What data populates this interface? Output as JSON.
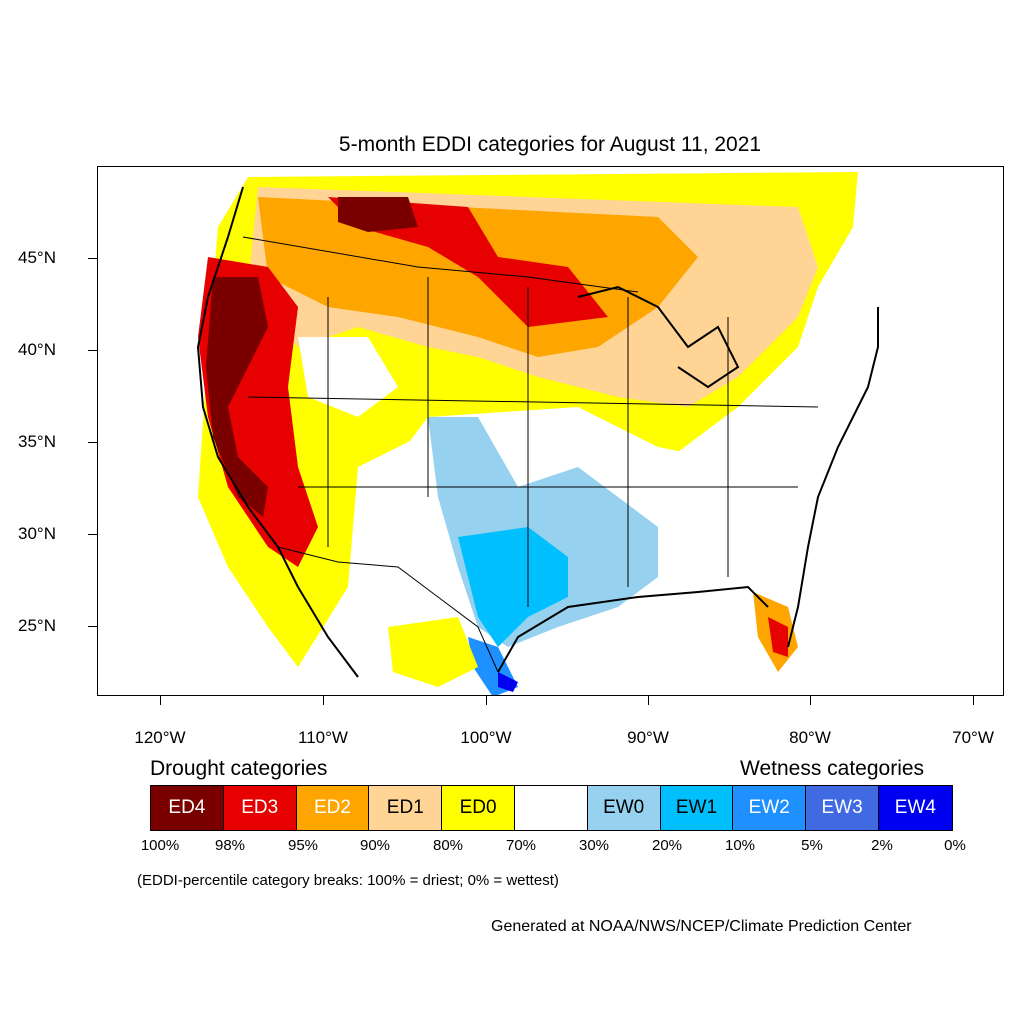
{
  "title": "5-month EDDI categories for August 11, 2021",
  "lat_labels": [
    "45°N",
    "40°N",
    "35°N",
    "30°N",
    "25°N"
  ],
  "lon_labels": [
    "120°W",
    "110°W",
    "100°W",
    "90°W",
    "80°W",
    "70°W"
  ],
  "legend": {
    "drought_heading": "Drought categories",
    "wetness_heading": "Wetness categories",
    "categories": [
      {
        "label": "ED4",
        "color": "#7a0000",
        "text_color": "#ffffff"
      },
      {
        "label": "ED3",
        "color": "#e60000",
        "text_color": "#ffffff"
      },
      {
        "label": "ED2",
        "color": "#ffa500",
        "text_color": "#ffffff"
      },
      {
        "label": "ED1",
        "color": "#ffd494",
        "text_color": "#000000"
      },
      {
        "label": "ED0",
        "color": "#ffff00",
        "text_color": "#000000"
      },
      {
        "label": "",
        "color": "#ffffff",
        "text_color": "#000000"
      },
      {
        "label": "EW0",
        "color": "#96d2f0",
        "text_color": "#000000"
      },
      {
        "label": "EW1",
        "color": "#00bfff",
        "text_color": "#000000"
      },
      {
        "label": "EW2",
        "color": "#1e90ff",
        "text_color": "#ffffff"
      },
      {
        "label": "EW3",
        "color": "#4169e1",
        "text_color": "#ffffff"
      },
      {
        "label": "EW4",
        "color": "#0000f0",
        "text_color": "#ffffff"
      }
    ],
    "percent_breaks": [
      "100%",
      "98%",
      "95%",
      "90%",
      "80%",
      "70%",
      "30%",
      "20%",
      "10%",
      "5%",
      "2%",
      "0%"
    ]
  },
  "note": "(EDDI-percentile category breaks: 100% = driest; 0% = wettest)",
  "credit": "Generated at NOAA/NWS/NCEP/Climate Prediction Center"
}
